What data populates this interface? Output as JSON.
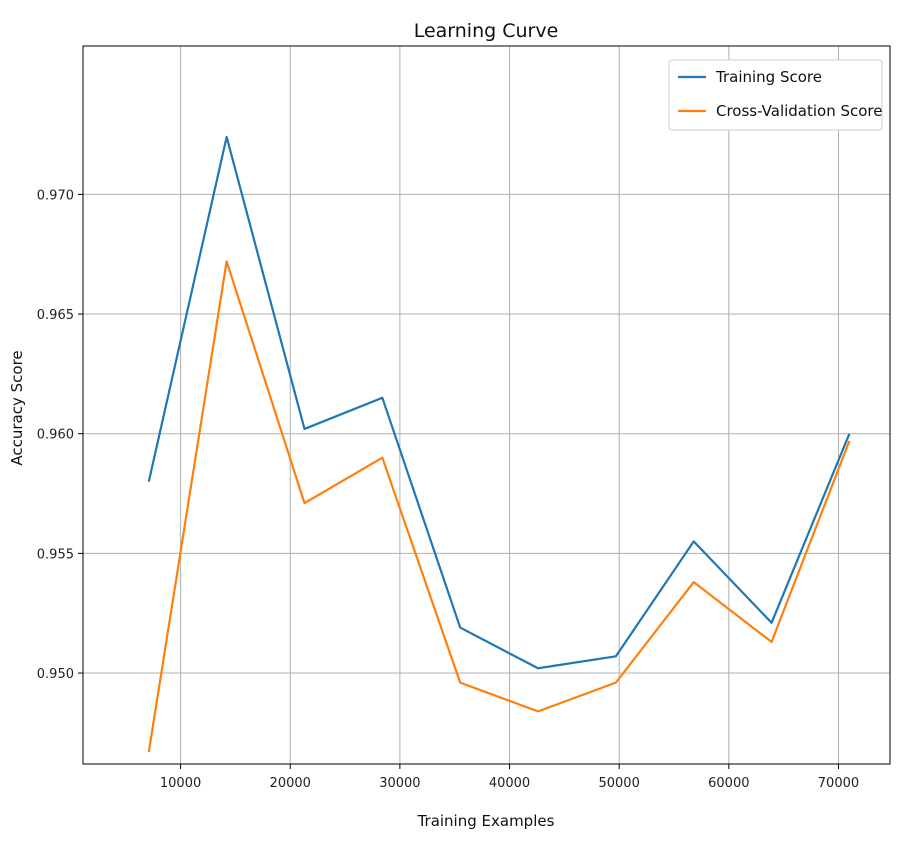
{
  "chart_data": {
    "type": "line",
    "title": "Learning Curve",
    "xlabel": "Training Examples",
    "ylabel": "Accuracy Score",
    "x": [
      7100,
      14200,
      21300,
      28400,
      35500,
      42600,
      49700,
      56800,
      63900,
      71000
    ],
    "series": [
      {
        "name": "Training Score",
        "color": "#1f77b4",
        "values": [
          0.958,
          0.9724,
          0.9602,
          0.9615,
          0.9519,
          0.9502,
          0.9507,
          0.9555,
          0.9521,
          0.96
        ]
      },
      {
        "name": "Cross-Validation Score",
        "color": "#ff7f0e",
        "values": [
          0.9467,
          0.9672,
          0.9571,
          0.959,
          0.9496,
          0.9484,
          0.9496,
          0.9538,
          0.9513,
          0.9597
        ]
      }
    ],
    "xticks": [
      10000,
      20000,
      30000,
      40000,
      50000,
      60000,
      70000
    ],
    "yticks": [
      0.95,
      0.955,
      0.96,
      0.965,
      0.97
    ],
    "xtick_labels": [
      "10000",
      "20000",
      "30000",
      "40000",
      "50000",
      "60000",
      "70000"
    ],
    "ytick_labels": [
      "0.950",
      "0.955",
      "0.960",
      "0.965",
      "0.970"
    ],
    "xlim": [
      1100,
      74700
    ],
    "ylim": [
      0.9462,
      0.9762
    ],
    "grid": true,
    "legend_position": "top-right"
  }
}
